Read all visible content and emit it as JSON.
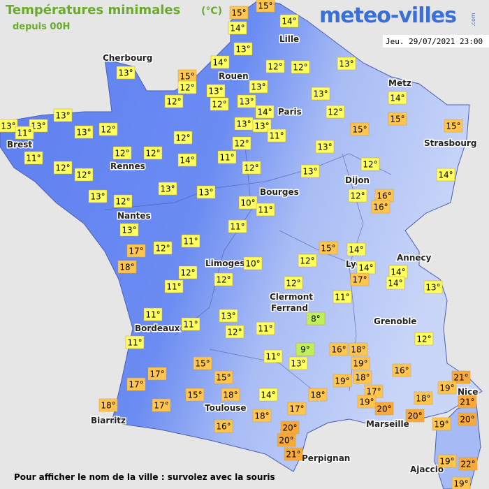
{
  "header": {
    "title": "Températures minimales",
    "unit": "(°C)",
    "subtitle": "depuis 00H",
    "logo": "meteo-villes",
    "logo_suffix": ".com",
    "timestamp": "Jeu. 29/07/2021 23:00"
  },
  "footer": "Pour afficher le nom de la ville : survolez avec la souris",
  "cities": [
    "Cherbourg",
    "Lille",
    "Rouen",
    "Metz",
    "Paris",
    "Brest",
    "Strasbourg",
    "Rennes",
    "Dijon",
    "Bourges",
    "Nantes",
    "Annecy",
    "Lyon",
    "Limoges",
    "Clermont",
    "Ferrand",
    "Grenoble",
    "Bordeaux",
    "Toulouse",
    "Nice",
    "Biarritz",
    "Marseille",
    "Perpignan",
    "Ajaccio"
  ],
  "temperatures": [
    "15°",
    "15°",
    "14°",
    "14°",
    "13°",
    "13°",
    "14°",
    "12°",
    "12°",
    "13°",
    "15°",
    "12°",
    "13°",
    "13°",
    "14°",
    "13°",
    "12°",
    "12°",
    "13°",
    "14°",
    "12°",
    "15°",
    "13°",
    "13°",
    "13°",
    "11°",
    "13°",
    "12°",
    "13°",
    "13°",
    "11°",
    "15°",
    "15°",
    "12°",
    "12°",
    "13°",
    "11°",
    "12°",
    "12°",
    "14°",
    "11°",
    "12°",
    "12°",
    "12°",
    "12°",
    "13°",
    "14°",
    "13°",
    "13°",
    "13°",
    "12°",
    "12°",
    "16°",
    "16°",
    "10°",
    "11°",
    "13°",
    "11°",
    "17°",
    "12°",
    "11°",
    "15°",
    "14°",
    "18°",
    "12°",
    "10°",
    "14°",
    "14°",
    "12°",
    "12°",
    "17°",
    "14°",
    "13°",
    "11°",
    "12°",
    "11°",
    "11°",
    "13°",
    "8°",
    "11°",
    "12°",
    "11°",
    "12°",
    "11°",
    "9°",
    "16°",
    "18°",
    "11°",
    "13°",
    "15°",
    "19°",
    "16°",
    "17°",
    "15°",
    "18°",
    "19°",
    "21°",
    "17°",
    "19°",
    "17°",
    "15°",
    "18°",
    "14°",
    "18°",
    "21°",
    "19°",
    "18°",
    "18°",
    "17°",
    "17°",
    "20°",
    "20°",
    "18°",
    "16°",
    "20°",
    "19°",
    "20°",
    "20°",
    "21°",
    "19°",
    "22°",
    "19°"
  ]
}
